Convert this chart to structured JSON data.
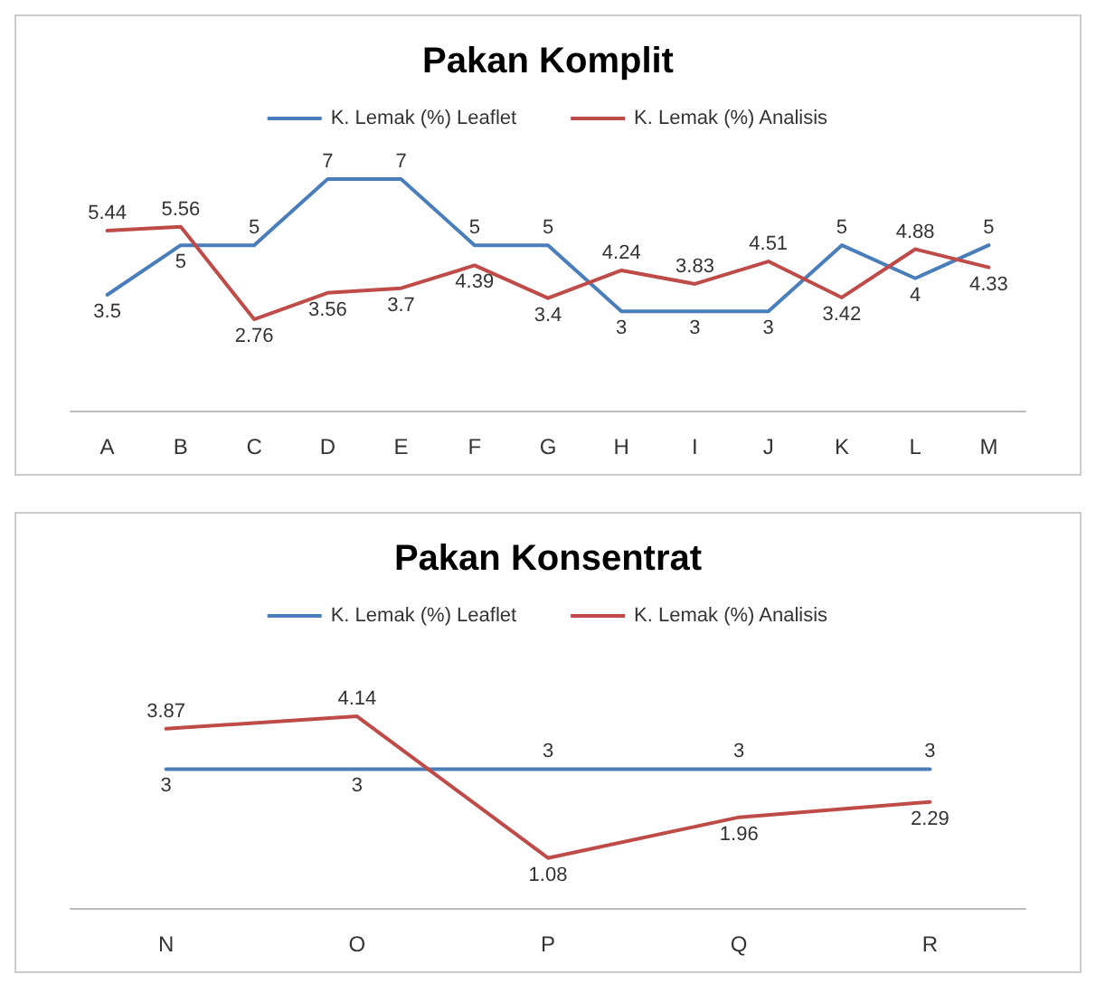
{
  "chart_data": [
    {
      "type": "line",
      "title": "Pakan Komplit",
      "categories": [
        "A",
        "B",
        "C",
        "D",
        "E",
        "F",
        "G",
        "H",
        "I",
        "J",
        "K",
        "L",
        "M"
      ],
      "series": [
        {
          "name": "K. Lemak (%) Leaflet",
          "color": "#4a7ebb",
          "values": [
            3.5,
            5,
            5,
            7,
            7,
            5,
            5,
            3,
            3,
            3,
            5,
            4,
            5
          ]
        },
        {
          "name": "K. Lemak (%) Analisis",
          "color": "#be4b48",
          "values": [
            5.44,
            5.56,
            2.76,
            3.56,
            3.7,
            4.39,
            3.4,
            4.24,
            3.83,
            4.51,
            3.42,
            4.88,
            4.33
          ]
        }
      ],
      "data_labels": true,
      "legend": "top",
      "grid": false,
      "tick_labels": "x",
      "marker": "none",
      "line_style": "solid"
    },
    {
      "type": "line",
      "title": "Pakan Konsentrat",
      "categories": [
        "N",
        "O",
        "P",
        "Q",
        "R"
      ],
      "series": [
        {
          "name": "K. Lemak (%) Leaflet",
          "color": "#4a7ebb",
          "values": [
            3,
            3,
            3,
            3,
            3
          ]
        },
        {
          "name": "K. Lemak (%) Analisis",
          "color": "#be4b48",
          "values": [
            3.87,
            4.14,
            1.08,
            1.96,
            2.29
          ]
        }
      ],
      "data_labels": true,
      "legend": "top",
      "grid": false,
      "tick_labels": "x",
      "marker": "none",
      "line_style": "solid"
    }
  ]
}
